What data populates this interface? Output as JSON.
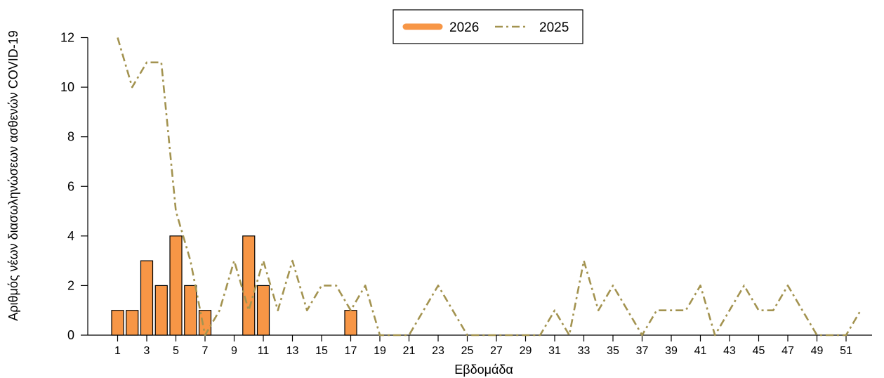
{
  "chart_data": {
    "type": "bar",
    "xlabel": "Εβδομάδα",
    "ylabel": "Αριθμός νέων διασωληνώσεων ασθενών COVID-19",
    "ylim": [
      0,
      12
    ],
    "yticks": [
      0,
      2,
      4,
      6,
      8,
      10,
      12
    ],
    "xticks": [
      1,
      3,
      5,
      7,
      9,
      11,
      13,
      15,
      17,
      19,
      21,
      23,
      25,
      27,
      29,
      31,
      33,
      35,
      37,
      39,
      41,
      43,
      45,
      47,
      49,
      51
    ],
    "legend_position": "top-center",
    "grid": false,
    "series": [
      {
        "name": "2026",
        "kind": "bar",
        "color": "#f79646",
        "x": [
          1,
          2,
          3,
          4,
          5,
          6,
          7,
          10,
          11,
          17
        ],
        "values": [
          1,
          1,
          3,
          2,
          4,
          2,
          1,
          4,
          2,
          1
        ]
      },
      {
        "name": "2025",
        "kind": "line",
        "style": "dash-dot",
        "color": "#a39350",
        "x": [
          1,
          2,
          3,
          4,
          5,
          6,
          7,
          8,
          9,
          10,
          11,
          12,
          13,
          14,
          15,
          16,
          17,
          18,
          19,
          20,
          21,
          22,
          23,
          24,
          25,
          26,
          27,
          28,
          29,
          30,
          31,
          32,
          33,
          34,
          35,
          36,
          37,
          38,
          39,
          40,
          41,
          42,
          43,
          44,
          45,
          46,
          47,
          48,
          49,
          50,
          51,
          52
        ],
        "values": [
          12,
          10,
          11,
          11,
          5,
          3,
          0,
          1,
          3,
          1,
          3,
          1,
          3,
          1,
          2,
          2,
          1,
          2,
          0,
          0,
          0,
          1,
          2,
          1,
          0,
          0,
          0,
          0,
          0,
          0,
          1,
          0,
          3,
          1,
          2,
          1,
          0,
          1,
          1,
          1,
          2,
          0,
          1,
          2,
          1,
          1,
          2,
          1,
          0,
          0,
          0,
          1
        ]
      }
    ]
  }
}
